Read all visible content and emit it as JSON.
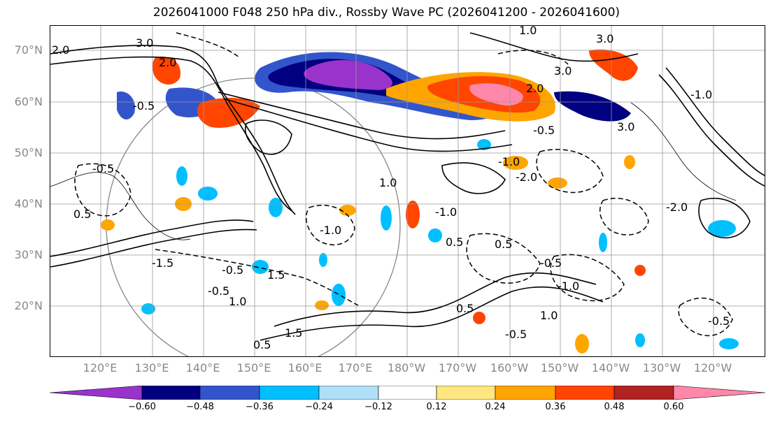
{
  "title": "2026041000 F048 250 hPa div., Rossby Wave PC (2026041200 - 2026041600)",
  "lat_labels": [
    "70°N",
    "60°N",
    "50°N",
    "40°N",
    "30°N",
    "20°N"
  ],
  "lon_labels": [
    "120°E",
    "130°E",
    "140°E",
    "150°E",
    "160°E",
    "170°E",
    "180°W",
    "170°W",
    "160°W",
    "150°W",
    "140°W",
    "130°W",
    "120°W"
  ],
  "colorbar": {
    "colors": [
      "#9933cc",
      "#000080",
      "#3355cc",
      "#00bfff",
      "#b0e0f8",
      "#ffffff",
      "#ffe680",
      "#ffa500",
      "#ff4500",
      "#b22222",
      "#ff88aa"
    ],
    "tick_labels": [
      "−0.60",
      "−0.48",
      "−0.36",
      "−0.24",
      "−0.12",
      "0.12",
      "0.24",
      "0.36",
      "0.48",
      "0.60"
    ]
  },
  "contour_labels": [
    "2.0",
    "3.0",
    "3.0",
    "1.0",
    "2.0",
    "3.0",
    "3.0",
    "-1.0",
    "2.0",
    "-0.5",
    "-0.5",
    "-0.5",
    "1.0",
    "-1.0",
    "0.5",
    "-1.5",
    "-0.5",
    "-0.5",
    "1.0",
    "1.5",
    "0.5",
    "-1.0",
    "0.5",
    "-0.5",
    "0.5",
    "-0.5",
    "-2.0",
    "-2.0",
    "1.0",
    "-1.0",
    "-1.0",
    "-0.5",
    "0.5",
    "1.5"
  ],
  "colors": {
    "grid": "#999999",
    "axis_label": "#888888"
  }
}
